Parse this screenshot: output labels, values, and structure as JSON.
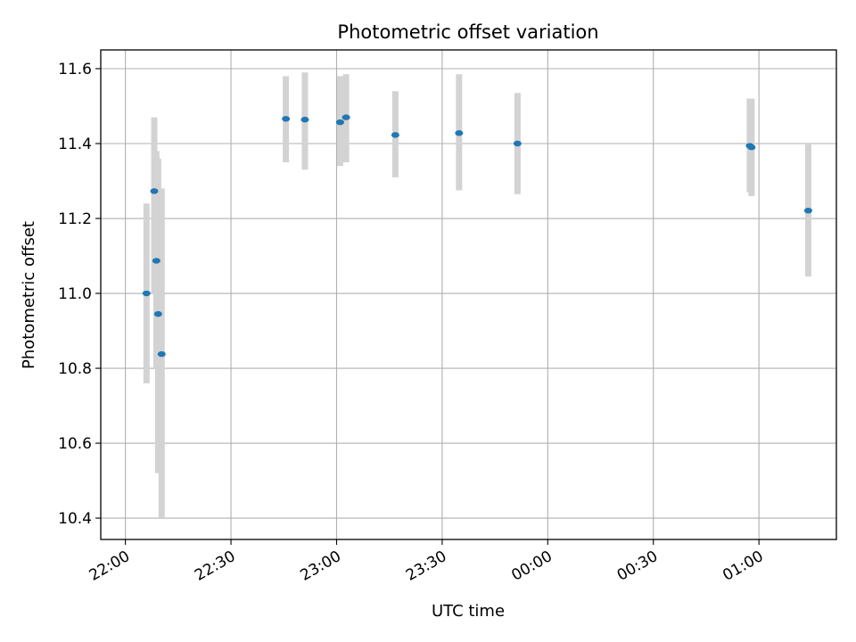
{
  "chart_data": {
    "type": "scatter",
    "title": "Photometric offset variation",
    "xlabel": "UTC time",
    "ylabel": "Photometric offset",
    "x_axis": {
      "range_minutes": [
        -7,
        202
      ],
      "ticks": [
        {
          "minutes": 0,
          "label": "22:00"
        },
        {
          "minutes": 30,
          "label": "22:30"
        },
        {
          "minutes": 60,
          "label": "23:00"
        },
        {
          "minutes": 90,
          "label": "23:30"
        },
        {
          "minutes": 120,
          "label": "00:00"
        },
        {
          "minutes": 150,
          "label": "00:30"
        },
        {
          "minutes": 180,
          "label": "01:00"
        }
      ]
    },
    "y_axis": {
      "range": [
        10.343,
        11.65
      ],
      "ticks": [
        {
          "value": 10.4,
          "label": "10.4"
        },
        {
          "value": 10.6,
          "label": "10.6"
        },
        {
          "value": 10.8,
          "label": "10.8"
        },
        {
          "value": 11.0,
          "label": "11.0"
        },
        {
          "value": 11.2,
          "label": "11.2"
        },
        {
          "value": 11.4,
          "label": "11.4"
        },
        {
          "value": 11.6,
          "label": "11.6"
        }
      ]
    },
    "grid": true,
    "colors": {
      "point": "#1f77b4",
      "errorbar": "#d3d3d3"
    },
    "points": [
      {
        "minutes": 6.0,
        "y": 11.0,
        "err_low": 10.76,
        "err_high": 11.24
      },
      {
        "minutes": 8.2,
        "y": 11.273,
        "err_low": 11.0,
        "err_high": 11.47
      },
      {
        "minutes": 8.8,
        "y": 11.087,
        "err_low": 10.8,
        "err_high": 11.38
      },
      {
        "minutes": 9.3,
        "y": 10.945,
        "err_low": 10.52,
        "err_high": 11.36
      },
      {
        "minutes": 10.3,
        "y": 10.838,
        "err_low": 10.4,
        "err_high": 11.28
      },
      {
        "minutes": 45.6,
        "y": 11.466,
        "err_low": 11.35,
        "err_high": 11.58
      },
      {
        "minutes": 51.0,
        "y": 11.464,
        "err_low": 11.33,
        "err_high": 11.59
      },
      {
        "minutes": 61.0,
        "y": 11.457,
        "err_low": 11.34,
        "err_high": 11.58
      },
      {
        "minutes": 62.7,
        "y": 11.47,
        "err_low": 11.35,
        "err_high": 11.585
      },
      {
        "minutes": 76.7,
        "y": 11.423,
        "err_low": 11.31,
        "err_high": 11.54
      },
      {
        "minutes": 94.8,
        "y": 11.428,
        "err_low": 11.275,
        "err_high": 11.585
      },
      {
        "minutes": 111.4,
        "y": 11.4,
        "err_low": 11.265,
        "err_high": 11.535
      },
      {
        "minutes": 177.4,
        "y": 11.394,
        "err_low": 11.27,
        "err_high": 11.52
      },
      {
        "minutes": 177.9,
        "y": 11.39,
        "err_low": 11.26,
        "err_high": 11.52
      },
      {
        "minutes": 194.0,
        "y": 11.221,
        "err_low": 11.045,
        "err_high": 11.4
      }
    ]
  }
}
